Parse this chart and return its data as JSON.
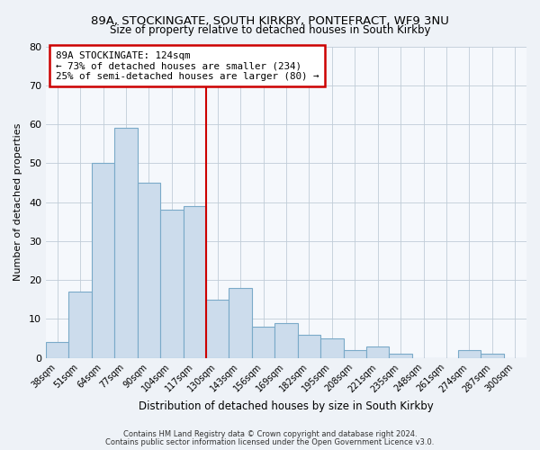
{
  "title": "89A, STOCKINGATE, SOUTH KIRKBY, PONTEFRACT, WF9 3NU",
  "subtitle": "Size of property relative to detached houses in South Kirkby",
  "xlabel": "Distribution of detached houses by size in South Kirkby",
  "ylabel": "Number of detached properties",
  "categories": [
    "38sqm",
    "51sqm",
    "64sqm",
    "77sqm",
    "90sqm",
    "104sqm",
    "117sqm",
    "130sqm",
    "143sqm",
    "156sqm",
    "169sqm",
    "182sqm",
    "195sqm",
    "208sqm",
    "221sqm",
    "235sqm",
    "248sqm",
    "261sqm",
    "274sqm",
    "287sqm",
    "300sqm"
  ],
  "values": [
    4,
    17,
    50,
    59,
    45,
    38,
    39,
    15,
    18,
    8,
    9,
    6,
    5,
    2,
    3,
    1,
    0,
    0,
    2,
    1,
    0
  ],
  "bar_color": "#ccdcec",
  "bar_edge_color": "#7aaac8",
  "vline_x_index": 7.0,
  "vline_color": "#cc0000",
  "annotation_title": "89A STOCKINGATE: 124sqm",
  "annotation_line1": "← 73% of detached houses are smaller (234)",
  "annotation_line2": "25% of semi-detached houses are larger (80) →",
  "annotation_box_color": "#ffffff",
  "annotation_box_edge": "#cc0000",
  "ylim": [
    0,
    80
  ],
  "yticks": [
    0,
    10,
    20,
    30,
    40,
    50,
    60,
    70,
    80
  ],
  "footnote1": "Contains HM Land Registry data © Crown copyright and database right 2024.",
  "footnote2": "Contains public sector information licensed under the Open Government Licence v3.0.",
  "bg_color": "#eef2f7",
  "plot_bg_color": "#f5f8fc"
}
